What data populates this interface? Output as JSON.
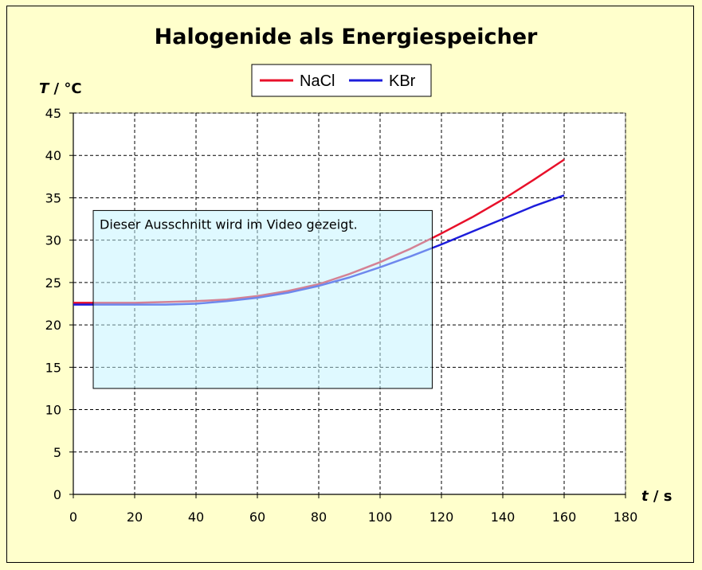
{
  "chart_data": {
    "type": "line",
    "title": "Halogenide als Energiespeicher",
    "ylabel_var": "T",
    "ylabel_unit": " / °C",
    "xlabel_var": "t",
    "xlabel_unit": " / s",
    "xlim": [
      0,
      180
    ],
    "ylim": [
      0,
      45
    ],
    "xticks": [
      0,
      20,
      40,
      60,
      80,
      100,
      120,
      140,
      160,
      180
    ],
    "yticks": [
      0,
      5,
      10,
      15,
      20,
      25,
      30,
      35,
      40,
      45
    ],
    "grid": true,
    "legend_position": "top-center",
    "series": [
      {
        "name": "NaCl",
        "color": "#e8102a",
        "x": [
          0,
          10,
          20,
          30,
          40,
          50,
          60,
          70,
          80,
          90,
          100,
          110,
          120,
          130,
          140,
          150,
          160
        ],
        "values": [
          22.6,
          22.6,
          22.6,
          22.7,
          22.8,
          23.0,
          23.4,
          24.0,
          24.8,
          26.0,
          27.4,
          29.0,
          30.8,
          32.7,
          34.8,
          37.1,
          39.5
        ]
      },
      {
        "name": "KBr",
        "color": "#1d1ddb",
        "x": [
          0,
          10,
          20,
          30,
          40,
          50,
          60,
          70,
          80,
          90,
          100,
          110,
          120,
          130,
          140,
          150,
          160
        ],
        "values": [
          22.4,
          22.4,
          22.4,
          22.4,
          22.5,
          22.8,
          23.2,
          23.8,
          24.6,
          25.6,
          26.8,
          28.1,
          29.5,
          31.0,
          32.5,
          34.0,
          35.3
        ]
      }
    ],
    "annotation": {
      "text": "Dieser Ausschnitt wird im Video gezeigt.",
      "x_range": [
        6.5,
        117
      ],
      "y_range": [
        12.5,
        33.5
      ]
    }
  }
}
